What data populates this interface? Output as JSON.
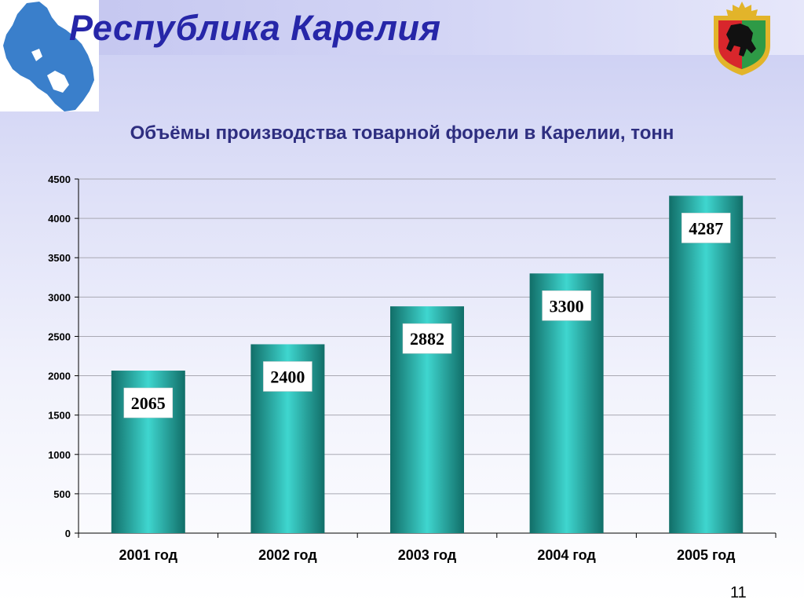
{
  "slide": {
    "title": "Республика Карелия",
    "page_number": "11"
  },
  "colors": {
    "title": "#2626a8",
    "bar_light": "#3fd6cf",
    "bar_dark": "#116e68",
    "map_fill": "#3a7fcb",
    "coat_gold": "#e2b42a",
    "coat_red": "#d8262c",
    "coat_green": "#2e9a46"
  },
  "icons": {
    "map": "karelia-map-icon",
    "coat_of_arms": "karelia-coat-of-arms-icon"
  },
  "chart_data": {
    "type": "bar",
    "title": "Объёмы производства товарной  форели в Карелии, тонн",
    "categories": [
      "2001 год",
      "2002 год",
      "2003 год",
      "2004 год",
      "2005 год"
    ],
    "values": [
      2065,
      2400,
      2882,
      3300,
      4287
    ],
    "value_labels": [
      "2065",
      "2400",
      "2882",
      "3300",
      "4287"
    ],
    "ylim": [
      0,
      4500
    ],
    "yticks": [
      0,
      500,
      1000,
      1500,
      2000,
      2500,
      3000,
      3500,
      4000,
      4500
    ],
    "grid": true,
    "legend": "none",
    "xlabel": "",
    "ylabel": ""
  }
}
